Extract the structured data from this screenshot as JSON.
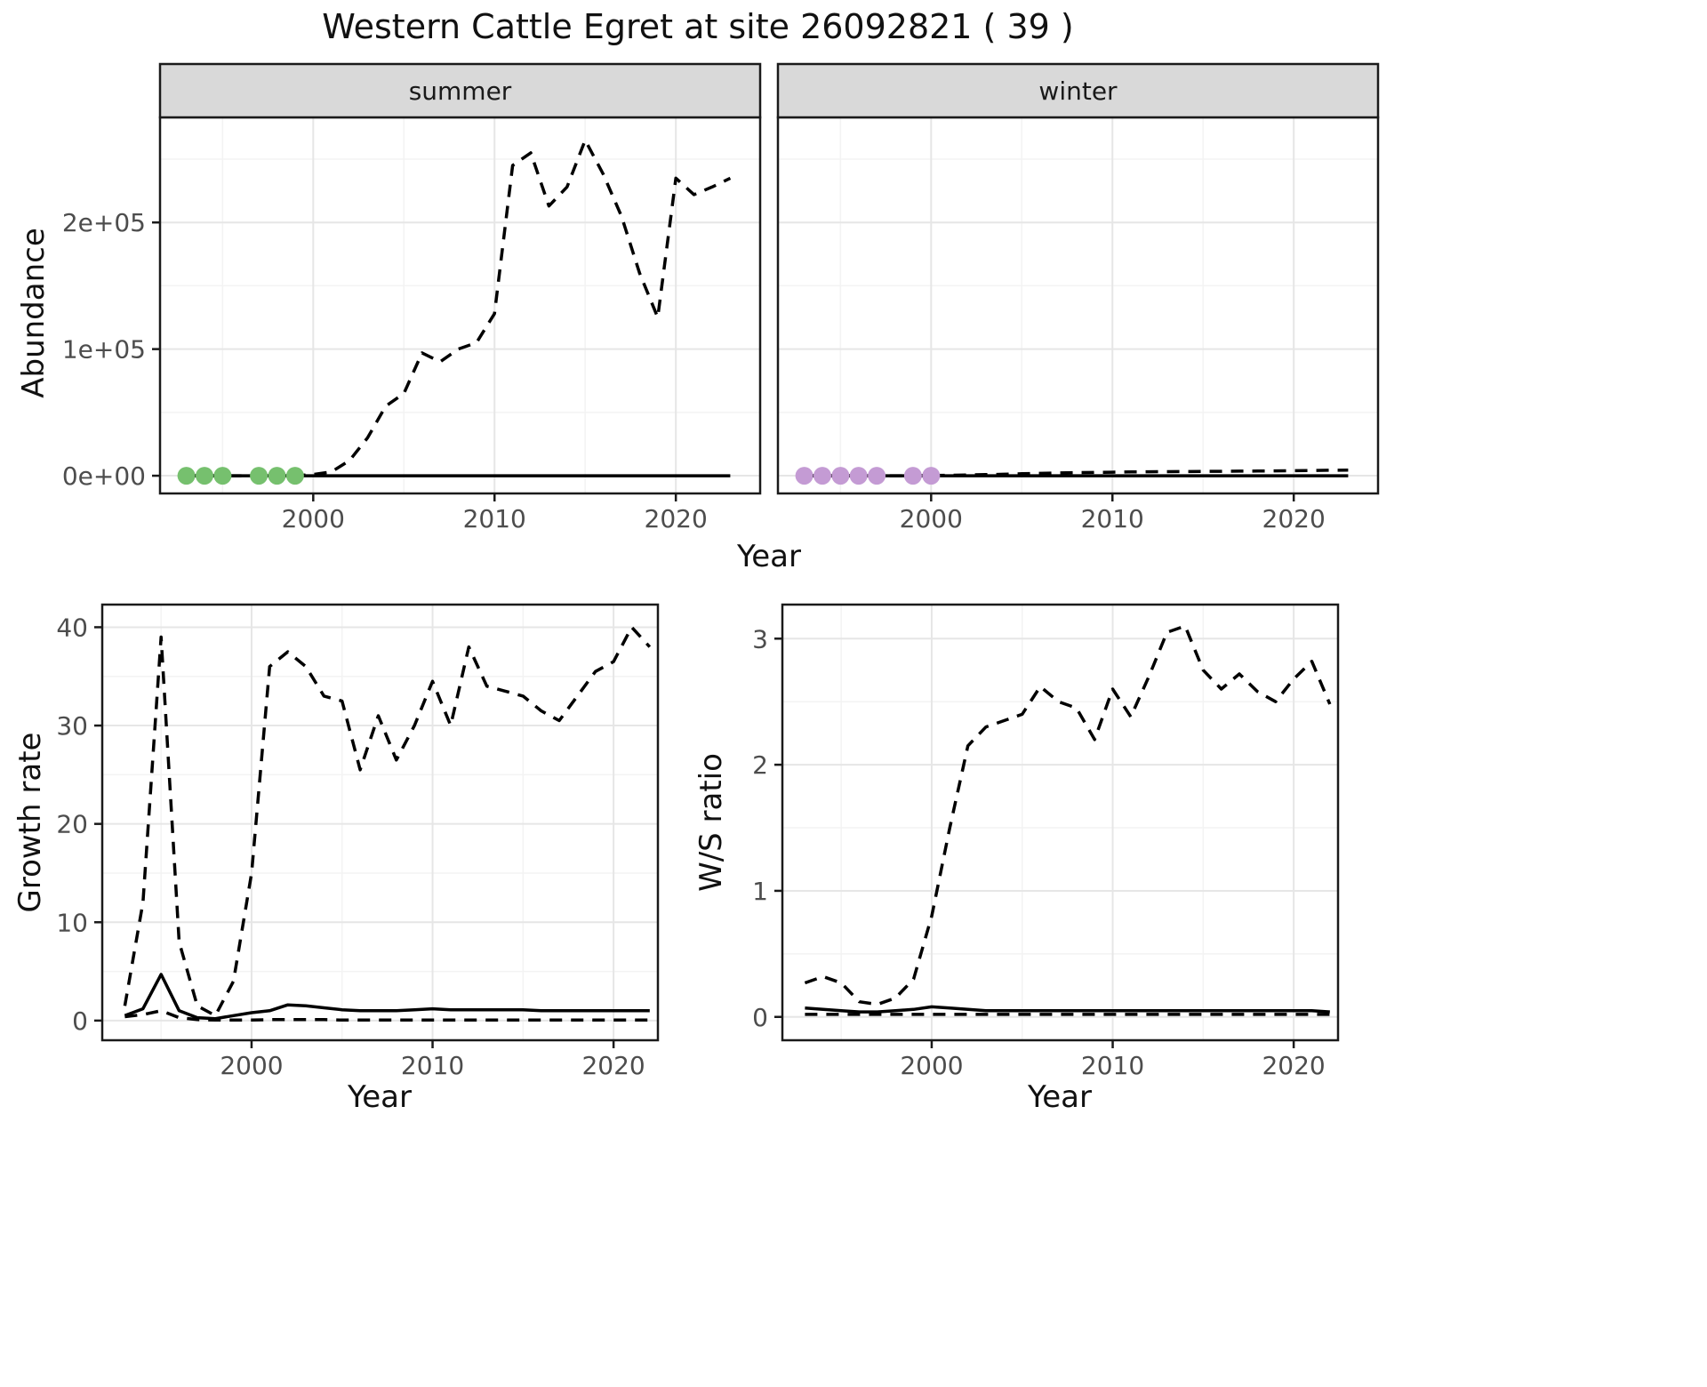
{
  "title": "Western Cattle Egret at site 26092821 ( 39 )",
  "colors": {
    "line": "#000000",
    "frame": "#1a1a1a",
    "grid_major": "#e6e6e6",
    "grid_minor": "#f3f3f3",
    "strip_bg": "#d9d9d9",
    "strip_text": "#1a1a1a",
    "tick_text": "#4d4d4d",
    "summer_points": "#76c06e",
    "winter_points": "#c49bd4"
  },
  "chart_data": [
    {
      "type": "line",
      "panel_key": "summer",
      "facet_label": "summer",
      "xlabel": "Year",
      "ylabel": "Abundance",
      "xlim": [
        1991.55,
        2024.65
      ],
      "ylim": [
        -14000,
        283000
      ],
      "xticks": {
        "values": [
          2000,
          2010,
          2020
        ],
        "labels": [
          "2000",
          "2010",
          "2020"
        ]
      },
      "yticks": {
        "values": [
          0,
          100000,
          200000
        ],
        "labels": [
          "0e+00",
          "1e+05",
          "2e+05"
        ]
      },
      "xminor": [
        1995,
        2005,
        2015
      ],
      "yminor": [
        50000,
        150000,
        250000
      ],
      "series": [
        {
          "name": "upper-credible",
          "style": "dashed",
          "x": [
            1993,
            1994,
            1995,
            1996,
            1997,
            1998,
            1999,
            2000,
            2001,
            2002,
            2003,
            2004,
            2005,
            2006,
            2007,
            2008,
            2009,
            2010,
            2011,
            2012,
            2013,
            2014,
            2015,
            2016,
            2017,
            2018,
            2019,
            2020,
            2021,
            2022,
            2023
          ],
          "y": [
            0,
            0,
            0,
            0,
            0,
            0,
            0,
            1000,
            3000,
            12000,
            30000,
            55000,
            65000,
            97000,
            90000,
            100000,
            105000,
            128000,
            245000,
            255000,
            213000,
            228000,
            265000,
            238000,
            205000,
            160000,
            125000,
            235000,
            222000,
            228000,
            235000
          ]
        },
        {
          "name": "median",
          "style": "solid",
          "x": [
            1993,
            2023
          ],
          "y": [
            0,
            0
          ]
        }
      ],
      "points": {
        "name": "summer-observed-point",
        "color_key": "summer_points",
        "x": [
          1993,
          1994,
          1995,
          1997,
          1998,
          1999
        ],
        "y": [
          0,
          0,
          0,
          0,
          0,
          0
        ]
      }
    },
    {
      "type": "line",
      "panel_key": "winter",
      "facet_label": "winter",
      "xlabel": "Year",
      "ylabel": "Abundance",
      "xlim": [
        1991.55,
        2024.65
      ],
      "ylim": [
        -14000,
        283000
      ],
      "xticks": {
        "values": [
          2000,
          2010,
          2020
        ],
        "labels": [
          "2000",
          "2010",
          "2020"
        ]
      },
      "yticks": {
        "values": [
          0,
          100000,
          200000
        ],
        "labels": []
      },
      "xminor": [
        1995,
        2005,
        2015
      ],
      "yminor": [
        50000,
        150000,
        250000
      ],
      "series": [
        {
          "name": "upper-credible",
          "style": "dashed",
          "x": [
            1993,
            1994,
            1995,
            1996,
            1997,
            1998,
            1999,
            2000,
            2001,
            2002,
            2003,
            2004,
            2005,
            2006,
            2007,
            2008,
            2009,
            2010,
            2011,
            2012,
            2013,
            2014,
            2015,
            2016,
            2017,
            2018,
            2019,
            2020,
            2021,
            2022,
            2023
          ],
          "y": [
            0,
            0,
            0,
            0,
            0,
            0,
            0,
            150,
            350,
            600,
            900,
            1200,
            1600,
            1900,
            2200,
            2400,
            2600,
            2800,
            3000,
            3100,
            3200,
            3300,
            3400,
            3500,
            3600,
            3700,
            3800,
            4000,
            4100,
            4300,
            4500
          ]
        },
        {
          "name": "median",
          "style": "solid",
          "x": [
            1993,
            2023
          ],
          "y": [
            0,
            0
          ]
        }
      ],
      "points": {
        "name": "winter-observed-point",
        "color_key": "winter_points",
        "x": [
          1993,
          1994,
          1995,
          1996,
          1997,
          1999,
          2000
        ],
        "y": [
          0,
          0,
          0,
          0,
          0,
          0,
          0
        ]
      }
    },
    {
      "type": "line",
      "panel_key": "growth",
      "facet_label": null,
      "xlabel": "Year",
      "ylabel": "Growth rate",
      "xlim": [
        1991.75,
        2022.45
      ],
      "ylim": [
        -2.0,
        42.3
      ],
      "xticks": {
        "values": [
          2000,
          2010,
          2020
        ],
        "labels": [
          "2000",
          "2010",
          "2020"
        ]
      },
      "yticks": {
        "values": [
          0,
          10,
          20,
          30,
          40
        ],
        "labels": [
          "0",
          "10",
          "20",
          "30",
          "40"
        ]
      },
      "xminor": [
        1995,
        2005,
        2015
      ],
      "yminor": [
        5,
        15,
        25,
        35
      ],
      "series": [
        {
          "name": "upper-credible",
          "style": "dashed",
          "x": [
            1993,
            1994,
            1995,
            1996,
            1997,
            1998,
            1999,
            2000,
            2001,
            2002,
            2003,
            2004,
            2005,
            2006,
            2007,
            2008,
            2009,
            2010,
            2011,
            2012,
            2013,
            2014,
            2015,
            2016,
            2017,
            2018,
            2019,
            2020,
            2021,
            2022
          ],
          "y": [
            1.5,
            12,
            39,
            8,
            1.5,
            0.5,
            4,
            15,
            36,
            37.5,
            36,
            33,
            32.5,
            25.5,
            31,
            26.5,
            30,
            34.5,
            30,
            38,
            34,
            33.5,
            33,
            31.5,
            30.5,
            33,
            35.5,
            36.5,
            40,
            38
          ]
        },
        {
          "name": "median",
          "style": "solid",
          "x": [
            1993,
            1994,
            1995,
            1996,
            1997,
            1998,
            1999,
            2000,
            2001,
            2002,
            2003,
            2004,
            2005,
            2006,
            2007,
            2008,
            2009,
            2010,
            2011,
            2012,
            2013,
            2014,
            2015,
            2016,
            2017,
            2018,
            2019,
            2020,
            2021,
            2022
          ],
          "y": [
            0.5,
            1.2,
            4.7,
            1.0,
            0.3,
            0.2,
            0.5,
            0.8,
            1.0,
            1.6,
            1.5,
            1.3,
            1.1,
            1.0,
            1.0,
            1.0,
            1.1,
            1.2,
            1.1,
            1.1,
            1.1,
            1.1,
            1.1,
            1.0,
            1.0,
            1.0,
            1.0,
            1.0,
            1.0,
            1.0
          ]
        },
        {
          "name": "lower-credible",
          "style": "dashed",
          "x": [
            1993,
            1994,
            1995,
            1996,
            1997,
            1998,
            1999,
            2000,
            2001,
            2002,
            2003,
            2004,
            2005,
            2006,
            2007,
            2008,
            2009,
            2010,
            2011,
            2012,
            2013,
            2014,
            2015,
            2016,
            2017,
            2018,
            2019,
            2020,
            2021,
            2022
          ],
          "y": [
            0.4,
            0.6,
            1.0,
            0.3,
            0.1,
            0.05,
            0.05,
            0.05,
            0.1,
            0.1,
            0.1,
            0.1,
            0.05,
            0.05,
            0.05,
            0.05,
            0.05,
            0.05,
            0.05,
            0.05,
            0.05,
            0.05,
            0.05,
            0.05,
            0.05,
            0.05,
            0.05,
            0.05,
            0.05,
            0.05
          ]
        }
      ],
      "points": null
    },
    {
      "type": "line",
      "panel_key": "ws",
      "facet_label": null,
      "xlabel": "Year",
      "ylabel": "W/S ratio",
      "xlim": [
        1991.75,
        2022.45
      ],
      "ylim": [
        -0.185,
        3.27
      ],
      "xticks": {
        "values": [
          2000,
          2010,
          2020
        ],
        "labels": [
          "2000",
          "2010",
          "2020"
        ]
      },
      "yticks": {
        "values": [
          0,
          1,
          2,
          3
        ],
        "labels": [
          "0",
          "1",
          "2",
          "3"
        ]
      },
      "xminor": [
        1995,
        2005,
        2015
      ],
      "yminor": [
        0.5,
        1.5,
        2.5
      ],
      "series": [
        {
          "name": "upper-credible",
          "style": "dashed",
          "x": [
            1993,
            1994,
            1995,
            1996,
            1997,
            1998,
            1999,
            2000,
            2001,
            2002,
            2003,
            2004,
            2005,
            2006,
            2007,
            2008,
            2009,
            2010,
            2011,
            2012,
            2013,
            2014,
            2015,
            2016,
            2017,
            2018,
            2019,
            2020,
            2021,
            2022
          ],
          "y": [
            0.27,
            0.32,
            0.27,
            0.12,
            0.1,
            0.15,
            0.3,
            0.8,
            1.5,
            2.15,
            2.3,
            2.35,
            2.4,
            2.62,
            2.5,
            2.45,
            2.2,
            2.6,
            2.38,
            2.7,
            3.05,
            3.1,
            2.75,
            2.6,
            2.72,
            2.58,
            2.5,
            2.68,
            2.82,
            2.48
          ]
        },
        {
          "name": "median",
          "style": "solid",
          "x": [
            1993,
            1994,
            1995,
            1996,
            1997,
            1998,
            1999,
            2000,
            2001,
            2002,
            2003,
            2004,
            2005,
            2006,
            2007,
            2008,
            2009,
            2010,
            2011,
            2012,
            2013,
            2014,
            2015,
            2016,
            2017,
            2018,
            2019,
            2020,
            2021,
            2022
          ],
          "y": [
            0.07,
            0.06,
            0.05,
            0.04,
            0.04,
            0.05,
            0.06,
            0.08,
            0.07,
            0.06,
            0.05,
            0.05,
            0.05,
            0.05,
            0.05,
            0.05,
            0.05,
            0.05,
            0.05,
            0.05,
            0.05,
            0.05,
            0.05,
            0.05,
            0.05,
            0.05,
            0.05,
            0.05,
            0.05,
            0.04
          ]
        },
        {
          "name": "lower-credible",
          "style": "dashed",
          "x": [
            1993,
            2022
          ],
          "y": [
            0.02,
            0.02
          ]
        }
      ],
      "points": null
    }
  ]
}
